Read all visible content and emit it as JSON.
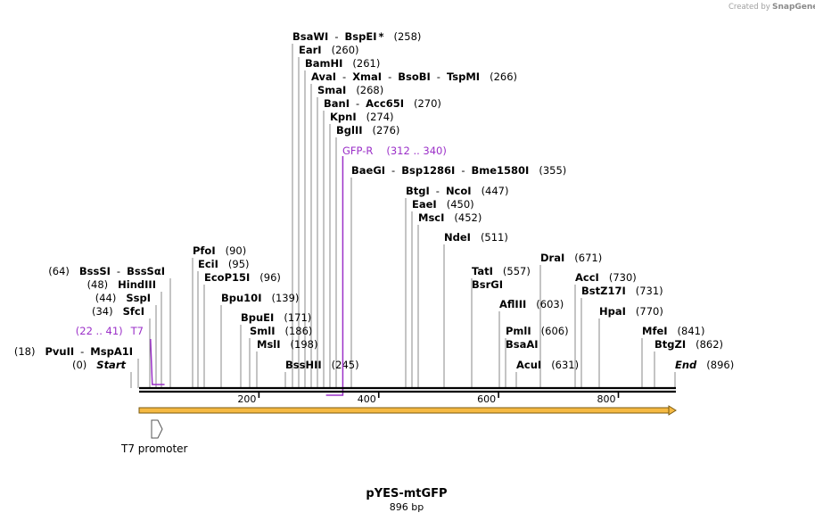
{
  "credit": {
    "text": "Created by",
    "brand": "SnapGene"
  },
  "title": "pYES-mtGFP",
  "length": "896 bp",
  "ticks": [
    {
      "label": "200",
      "bp": 200
    },
    {
      "label": "400",
      "bp": 400
    },
    {
      "label": "600",
      "bp": 600
    },
    {
      "label": "800",
      "bp": 800
    }
  ],
  "sites": [
    {
      "id": "start",
      "bp": 0,
      "parts": [
        {
          "t": "(0)",
          "k": "pos"
        },
        {
          "t": "Start",
          "k": "enz",
          "italic": true
        }
      ]
    },
    {
      "id": "pvuii",
      "bp": 18,
      "parts": [
        {
          "t": "(18)",
          "k": "pos"
        },
        {
          "t": "PvuII",
          "k": "enz"
        },
        {
          "t": "-",
          "k": "pos"
        },
        {
          "t": "MspA1I",
          "k": "enz"
        }
      ]
    },
    {
      "id": "sfci",
      "bp": 34,
      "parts": [
        {
          "t": "(34)",
          "k": "pos"
        },
        {
          "t": "SfcI",
          "k": "enz"
        }
      ]
    },
    {
      "id": "sspi",
      "bp": 44,
      "parts": [
        {
          "t": "(44)",
          "k": "pos"
        },
        {
          "t": "SspI",
          "k": "enz"
        }
      ]
    },
    {
      "id": "hindiii",
      "bp": 48,
      "parts": [
        {
          "t": "(48)",
          "k": "pos"
        },
        {
          "t": "HindIII",
          "k": "enz"
        }
      ]
    },
    {
      "id": "bsssi",
      "bp": 64,
      "parts": [
        {
          "t": "(64)",
          "k": "pos"
        },
        {
          "t": "BssSI",
          "k": "enz"
        },
        {
          "t": "-",
          "k": "pos"
        },
        {
          "t": "BssSαI",
          "k": "enz"
        }
      ]
    },
    {
      "id": "pfoi",
      "bp": 90,
      "parts": [
        {
          "t": "PfoI",
          "k": "enz"
        },
        {
          "t": "(90)",
          "k": "pos"
        }
      ]
    },
    {
      "id": "ecii",
      "bp": 95,
      "parts": [
        {
          "t": "EciI",
          "k": "enz"
        },
        {
          "t": "(95)",
          "k": "pos"
        }
      ]
    },
    {
      "id": "ecop15i",
      "bp": 96,
      "parts": [
        {
          "t": "EcoP15I",
          "k": "enz"
        },
        {
          "t": "(96)",
          "k": "pos"
        }
      ]
    },
    {
      "id": "bpu10i",
      "bp": 139,
      "parts": [
        {
          "t": "Bpu10I",
          "k": "enz"
        },
        {
          "t": "(139)",
          "k": "pos"
        }
      ]
    },
    {
      "id": "bpuei",
      "bp": 171,
      "parts": [
        {
          "t": "BpuEI",
          "k": "enz"
        },
        {
          "t": "(171)",
          "k": "pos"
        }
      ]
    },
    {
      "id": "smli",
      "bp": 186,
      "parts": [
        {
          "t": "SmlI",
          "k": "enz"
        },
        {
          "t": "(186)",
          "k": "pos"
        }
      ]
    },
    {
      "id": "msli",
      "bp": 198,
      "parts": [
        {
          "t": "MslI",
          "k": "enz"
        },
        {
          "t": "(198)",
          "k": "pos"
        }
      ]
    },
    {
      "id": "bsshii",
      "bp": 245,
      "parts": [
        {
          "t": "BssHII",
          "k": "enz"
        },
        {
          "t": "(245)",
          "k": "pos"
        }
      ]
    },
    {
      "id": "bsawi",
      "bp": 258,
      "parts": [
        {
          "t": "BsaWI",
          "k": "enz"
        },
        {
          "t": "-",
          "k": "pos"
        },
        {
          "t": "BspEI",
          "k": "enz"
        },
        {
          "t": "*",
          "k": "enz"
        },
        {
          "t": "(258)",
          "k": "pos"
        }
      ]
    },
    {
      "id": "eari",
      "bp": 260,
      "parts": [
        {
          "t": "EarI",
          "k": "enz"
        },
        {
          "t": "(260)",
          "k": "pos"
        }
      ]
    },
    {
      "id": "bamhi",
      "bp": 261,
      "parts": [
        {
          "t": "BamHI",
          "k": "enz"
        },
        {
          "t": "(261)",
          "k": "pos"
        }
      ]
    },
    {
      "id": "avai",
      "bp": 266,
      "parts": [
        {
          "t": "AvaI",
          "k": "enz"
        },
        {
          "t": "-",
          "k": "pos"
        },
        {
          "t": "XmaI",
          "k": "enz"
        },
        {
          "t": "-",
          "k": "pos"
        },
        {
          "t": "BsoBI",
          "k": "enz"
        },
        {
          "t": "-",
          "k": "pos"
        },
        {
          "t": "TspMI",
          "k": "enz"
        },
        {
          "t": "(266)",
          "k": "pos"
        }
      ]
    },
    {
      "id": "smai",
      "bp": 268,
      "parts": [
        {
          "t": "SmaI",
          "k": "enz"
        },
        {
          "t": "(268)",
          "k": "pos"
        }
      ]
    },
    {
      "id": "bani",
      "bp": 270,
      "parts": [
        {
          "t": "BanI",
          "k": "enz"
        },
        {
          "t": "-",
          "k": "pos"
        },
        {
          "t": "Acc65I",
          "k": "enz"
        },
        {
          "t": "(270)",
          "k": "pos"
        }
      ]
    },
    {
      "id": "kpni",
      "bp": 274,
      "parts": [
        {
          "t": "KpnI",
          "k": "enz"
        },
        {
          "t": "(274)",
          "k": "pos"
        }
      ]
    },
    {
      "id": "bglii",
      "bp": 276,
      "parts": [
        {
          "t": "BglII",
          "k": "enz"
        },
        {
          "t": "(276)",
          "k": "pos"
        }
      ]
    },
    {
      "id": "baegi",
      "bp": 355,
      "parts": [
        {
          "t": "BaeGI",
          "k": "enz"
        },
        {
          "t": "-",
          "k": "pos"
        },
        {
          "t": "Bsp1286I",
          "k": "enz"
        },
        {
          "t": "-",
          "k": "pos"
        },
        {
          "t": "Bme1580I",
          "k": "enz"
        },
        {
          "t": "(355)",
          "k": "pos"
        }
      ]
    },
    {
      "id": "btgi",
      "bp": 447,
      "parts": [
        {
          "t": "BtgI",
          "k": "enz"
        },
        {
          "t": "-",
          "k": "pos"
        },
        {
          "t": "NcoI",
          "k": "enz"
        },
        {
          "t": "(447)",
          "k": "pos"
        }
      ]
    },
    {
      "id": "eaei",
      "bp": 450,
      "parts": [
        {
          "t": "EaeI",
          "k": "enz"
        },
        {
          "t": "(450)",
          "k": "pos"
        }
      ]
    },
    {
      "id": "msci",
      "bp": 452,
      "parts": [
        {
          "t": "MscI",
          "k": "enz"
        },
        {
          "t": "(452)",
          "k": "pos"
        }
      ]
    },
    {
      "id": "ndei",
      "bp": 511,
      "parts": [
        {
          "t": "NdeI",
          "k": "enz"
        },
        {
          "t": "(511)",
          "k": "pos"
        }
      ]
    },
    {
      "id": "tati",
      "bp": 557,
      "parts": [
        {
          "t": "TatI",
          "k": "enz"
        },
        {
          "t": "(557)",
          "k": "pos"
        }
      ]
    },
    {
      "id": "bsrgi",
      "bp": 557,
      "parts": [
        {
          "t": "BsrGI",
          "k": "enz"
        }
      ]
    },
    {
      "id": "afliii",
      "bp": 603,
      "parts": [
        {
          "t": "AflIII",
          "k": "enz"
        },
        {
          "t": "(603)",
          "k": "pos"
        }
      ]
    },
    {
      "id": "pmli",
      "bp": 606,
      "parts": [
        {
          "t": "PmlI",
          "k": "enz"
        },
        {
          "t": "(606)",
          "k": "pos"
        }
      ]
    },
    {
      "id": "bsaai",
      "bp": 606,
      "parts": [
        {
          "t": "BsaAI",
          "k": "enz"
        }
      ]
    },
    {
      "id": "acui",
      "bp": 631,
      "parts": [
        {
          "t": "AcuI",
          "k": "enz"
        },
        {
          "t": "(631)",
          "k": "pos"
        }
      ]
    },
    {
      "id": "drai",
      "bp": 671,
      "parts": [
        {
          "t": "DraI",
          "k": "enz"
        },
        {
          "t": "(671)",
          "k": "pos"
        }
      ]
    },
    {
      "id": "acci",
      "bp": 730,
      "parts": [
        {
          "t": "AccI",
          "k": "enz"
        },
        {
          "t": "(730)",
          "k": "pos"
        }
      ]
    },
    {
      "id": "bstz17i",
      "bp": 731,
      "parts": [
        {
          "t": "BstZ17I",
          "k": "enz"
        },
        {
          "t": "(731)",
          "k": "pos"
        }
      ]
    },
    {
      "id": "hpai",
      "bp": 770,
      "parts": [
        {
          "t": "HpaI",
          "k": "enz"
        },
        {
          "t": "(770)",
          "k": "pos"
        }
      ]
    },
    {
      "id": "mfei",
      "bp": 841,
      "parts": [
        {
          "t": "MfeI",
          "k": "enz"
        },
        {
          "t": "(841)",
          "k": "pos"
        }
      ]
    },
    {
      "id": "btgzi",
      "bp": 862,
      "parts": [
        {
          "t": "BtgZI",
          "k": "enz"
        },
        {
          "t": "(862)",
          "k": "pos"
        }
      ]
    },
    {
      "id": "end",
      "bp": 896,
      "parts": [
        {
          "t": "End",
          "k": "enz",
          "italic": true
        },
        {
          "t": "(896)",
          "k": "pos"
        }
      ]
    }
  ],
  "primers": [
    {
      "id": "t7",
      "name": "T7",
      "range": "(22 .. 41)",
      "start": 22,
      "end": 41,
      "strand": "forward"
    },
    {
      "id": "gfp-r",
      "name": "GFP-R",
      "range": "(312 .. 340)",
      "start": 312,
      "end": 340,
      "strand": "reverse"
    }
  ],
  "features": [
    {
      "id": "t7-promoter",
      "name": "T7 promoter",
      "start": 20,
      "end": 38
    },
    {
      "id": "mtgfp-orf",
      "name": "",
      "start": 0,
      "end": 896
    }
  ],
  "colors": {
    "backbone": "#000000",
    "primer": "#9b30c8",
    "orf_fill": "#f5b942",
    "orf_edge": "#7a5a10",
    "leader": "#888888"
  }
}
